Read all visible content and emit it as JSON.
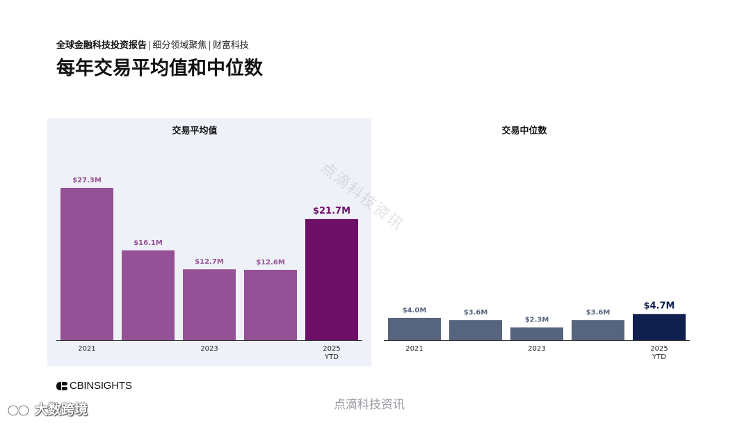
{
  "header": {
    "report_title": "全球金融科技投资报告",
    "sep": "|",
    "crumb1": "细分领域聚焦",
    "crumb2": "财富科技",
    "page_title": "每年交易平均值和中位数"
  },
  "brand": {
    "name": "CBINSIGHTS"
  },
  "watermarks": {
    "diagonal": "点滴科技资讯",
    "bottom": "点滴科技资讯",
    "corner": "大数跨境"
  },
  "colors": {
    "avg_bar": "#955195",
    "avg_highlight": "#6e0f67",
    "median_bar": "#56647f",
    "median_highlight": "#0f1f4e",
    "panel_bg": "#eef1f7"
  },
  "chart_data": [
    {
      "type": "bar",
      "title": "交易平均值",
      "unit": "$M",
      "values": [
        27.3,
        16.1,
        12.7,
        12.6,
        21.7
      ],
      "data_labels": [
        "$27.3M",
        "$16.1M",
        "$12.7M",
        "$12.6M",
        "$21.7M"
      ],
      "highlight_index": 4,
      "ylim": [
        0,
        27.3
      ],
      "x_tick_labels": [
        "2021",
        "",
        "2023",
        "",
        "2025\nYTD"
      ],
      "grid": false,
      "legend": "none"
    },
    {
      "type": "bar",
      "title": "交易中位数",
      "unit": "$M",
      "values": [
        4.0,
        3.6,
        2.3,
        3.6,
        4.7
      ],
      "data_labels": [
        "$4.0M",
        "$3.6M",
        "$2.3M",
        "$3.6M",
        "$4.7M"
      ],
      "highlight_index": 4,
      "ylim": [
        0,
        27.3
      ],
      "x_tick_labels": [
        "2021",
        "",
        "2023",
        "",
        "2025\nYTD"
      ],
      "grid": false,
      "legend": "none"
    }
  ]
}
